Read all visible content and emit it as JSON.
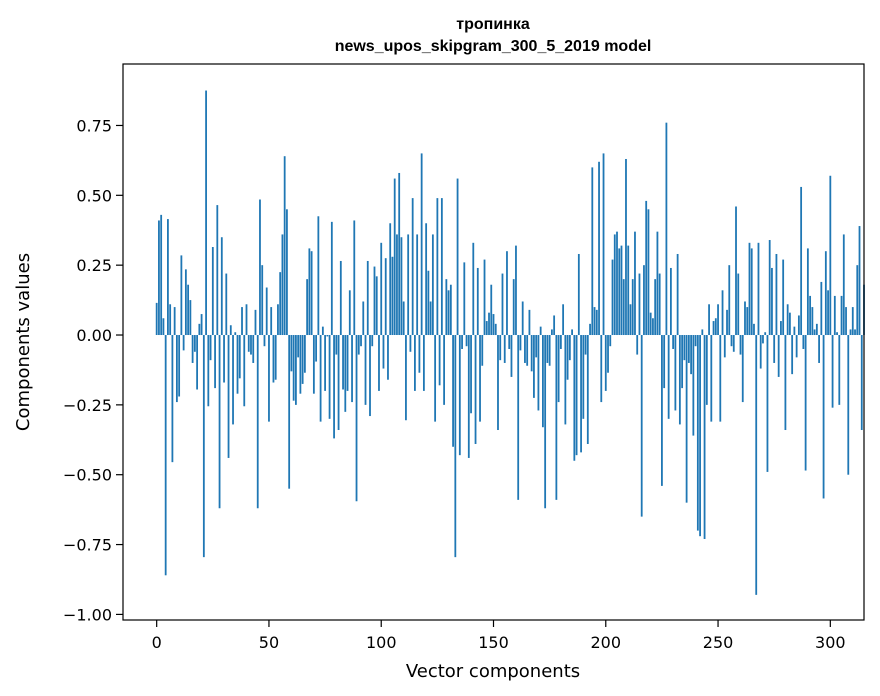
{
  "chart_data": {
    "type": "bar",
    "title": "тропинка",
    "subtitle": "news_upos_skipgram_300_5_2019 model",
    "xlabel": "Vector components",
    "ylabel": "Components values",
    "xlim": [
      -15,
      315
    ],
    "ylim": [
      -1.02,
      0.97
    ],
    "xticks": [
      0,
      50,
      100,
      150,
      200,
      250,
      300
    ],
    "yticks": [
      -1.0,
      -0.75,
      -0.5,
      -0.25,
      0.0,
      0.25,
      0.5,
      0.75
    ],
    "ytick_labels": [
      "−1.00",
      "−0.75",
      "−0.50",
      "−0.25",
      "0.00",
      "0.25",
      "0.50",
      "0.75"
    ],
    "xtick_labels": [
      "0",
      "50",
      "100",
      "150",
      "200",
      "250",
      "300"
    ],
    "grid": false,
    "bar_color": "#1f77b4",
    "values": [
      0.115,
      0.41,
      0.43,
      0.06,
      -0.86,
      0.415,
      0.11,
      -0.455,
      0.1,
      -0.24,
      -0.22,
      0.285,
      -0.055,
      0.235,
      0.18,
      0.125,
      -0.1,
      -0.06,
      -0.195,
      0.04,
      0.075,
      -0.795,
      0.875,
      -0.255,
      -0.09,
      0.315,
      -0.19,
      0.465,
      -0.62,
      0.35,
      -0.17,
      0.22,
      -0.44,
      0.035,
      -0.32,
      0.01,
      -0.21,
      -0.155,
      0.1,
      -0.255,
      0.11,
      -0.06,
      -0.07,
      -0.1,
      0.09,
      -0.62,
      0.485,
      0.25,
      -0.04,
      0.17,
      -0.31,
      0.1,
      -0.17,
      -0.16,
      0.11,
      0.225,
      0.36,
      0.64,
      0.45,
      -0.55,
      -0.13,
      -0.235,
      -0.25,
      -0.08,
      -0.21,
      -0.175,
      -0.135,
      0.2,
      0.31,
      0.3,
      -0.21,
      -0.095,
      0.425,
      -0.31,
      0.03,
      -0.2,
      -0.005,
      -0.3,
      0.405,
      -0.37,
      -0.07,
      -0.34,
      0.265,
      -0.195,
      -0.275,
      -0.2,
      0.16,
      -0.24,
      0.41,
      -0.595,
      -0.07,
      -0.04,
      0.12,
      -0.25,
      0.265,
      -0.29,
      -0.04,
      0.245,
      0.21,
      -0.2,
      0.33,
      -0.12,
      0.275,
      -0.16,
      0.4,
      0.28,
      0.56,
      0.36,
      0.58,
      0.35,
      0.12,
      -0.305,
      0.36,
      -0.06,
      0.49,
      -0.2,
      0.36,
      -0.135,
      0.65,
      -0.2,
      0.4,
      0.23,
      0.12,
      0.36,
      -0.31,
      0.49,
      -0.18,
      0.49,
      -0.25,
      0.2,
      0.16,
      0.18,
      -0.4,
      -0.795,
      0.56,
      -0.43,
      -0.05,
      0.26,
      -0.04,
      -0.44,
      -0.28,
      0.33,
      -0.39,
      0.24,
      -0.31,
      -0.11,
      0.27,
      0.05,
      0.08,
      0.18,
      0.075,
      0.04,
      -0.34,
      -0.09,
      0.22,
      -0.1,
      0.3,
      -0.05,
      -0.15,
      0.2,
      0.32,
      -0.59,
      -0.055,
      0.12,
      -0.1,
      -0.11,
      0.09,
      -0.13,
      -0.225,
      -0.08,
      -0.27,
      0.03,
      -0.33,
      -0.62,
      -0.1,
      -0.11,
      0.02,
      0.07,
      -0.59,
      -0.24,
      -0.05,
      0.11,
      -0.32,
      -0.16,
      -0.09,
      0.02,
      -0.45,
      -0.43,
      0.29,
      -0.42,
      -0.3,
      -0.07,
      -0.39,
      0.04,
      0.6,
      0.1,
      0.09,
      0.62,
      -0.24,
      0.65,
      -0.2,
      -0.135,
      -0.04,
      0.27,
      0.36,
      0.37,
      0.31,
      0.32,
      0.2,
      0.63,
      0.32,
      0.11,
      0.2,
      0.37,
      -0.07,
      0.22,
      -0.65,
      0.25,
      0.48,
      0.45,
      0.08,
      0.06,
      0.2,
      0.37,
      0.22,
      -0.54,
      -0.19,
      0.76,
      -0.3,
      0.24,
      -0.05,
      -0.27,
      0.29,
      -0.32,
      -0.19,
      -0.09,
      -0.6,
      -0.1,
      -0.14,
      -0.36,
      -0.04,
      -0.7,
      -0.72,
      0.02,
      -0.73,
      -0.25,
      0.11,
      -0.31,
      0.05,
      0.06,
      0.11,
      -0.31,
      0.16,
      -0.08,
      0.09,
      0.25,
      -0.04,
      -0.06,
      0.46,
      0.22,
      -0.07,
      -0.24,
      0.12,
      0.1,
      0.33,
      0.31,
      0.04,
      -0.93,
      0.33,
      -0.12,
      -0.03,
      0.01,
      -0.49,
      0.34,
      0.24,
      -0.1,
      0.29,
      -0.15,
      0.05,
      0.27,
      -0.34,
      0.11,
      0.08,
      -0.14,
      0.03,
      -0.08,
      0.07,
      0.53,
      -0.05,
      -0.485,
      0.31,
      0.14,
      0.1,
      0.02,
      0.04,
      -0.1,
      0.19,
      -0.585,
      0.3,
      0.16,
      0.57,
      -0.26,
      0.14,
      0.01,
      -0.25,
      0.14,
      0.36,
      0.1,
      -0.5,
      0.02,
      0.1,
      0.02,
      0.25,
      0.39,
      -0.34,
      0.18
    ]
  }
}
